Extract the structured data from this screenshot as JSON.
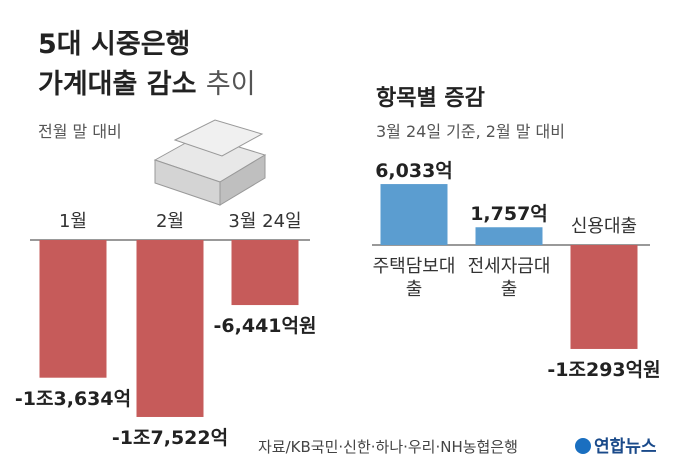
{
  "title": [
    "5대 시중은행",
    "가계대출 감소",
    "추이"
  ],
  "source": "자료/KB국민·신한·하나·우리·NH농협은행",
  "logo": "연합뉴스",
  "chart_data": [
    {
      "type": "bar",
      "subtitle": "전월 말 대비",
      "categories": [
        "1월",
        "2월",
        "3월 24일"
      ],
      "values": [
        -13634,
        -17522,
        -6441
      ],
      "value_labels": [
        "-1조3,634억",
        "-1조7,522억",
        "-6,441억원"
      ],
      "color": "#c65b5a"
    },
    {
      "type": "bar",
      "title": "항목별 증감",
      "subtitle": "3월 24일 기준, 2월 말 대비",
      "categories": [
        "주택담보대출",
        "전세자금대출",
        "신용대출"
      ],
      "values": [
        6033,
        1757,
        -10293
      ],
      "value_labels": [
        "6,033억",
        "1,757억",
        "-1조293억원"
      ],
      "colors": [
        "#5b9dd0",
        "#5b9dd0",
        "#c65b5a"
      ]
    }
  ]
}
